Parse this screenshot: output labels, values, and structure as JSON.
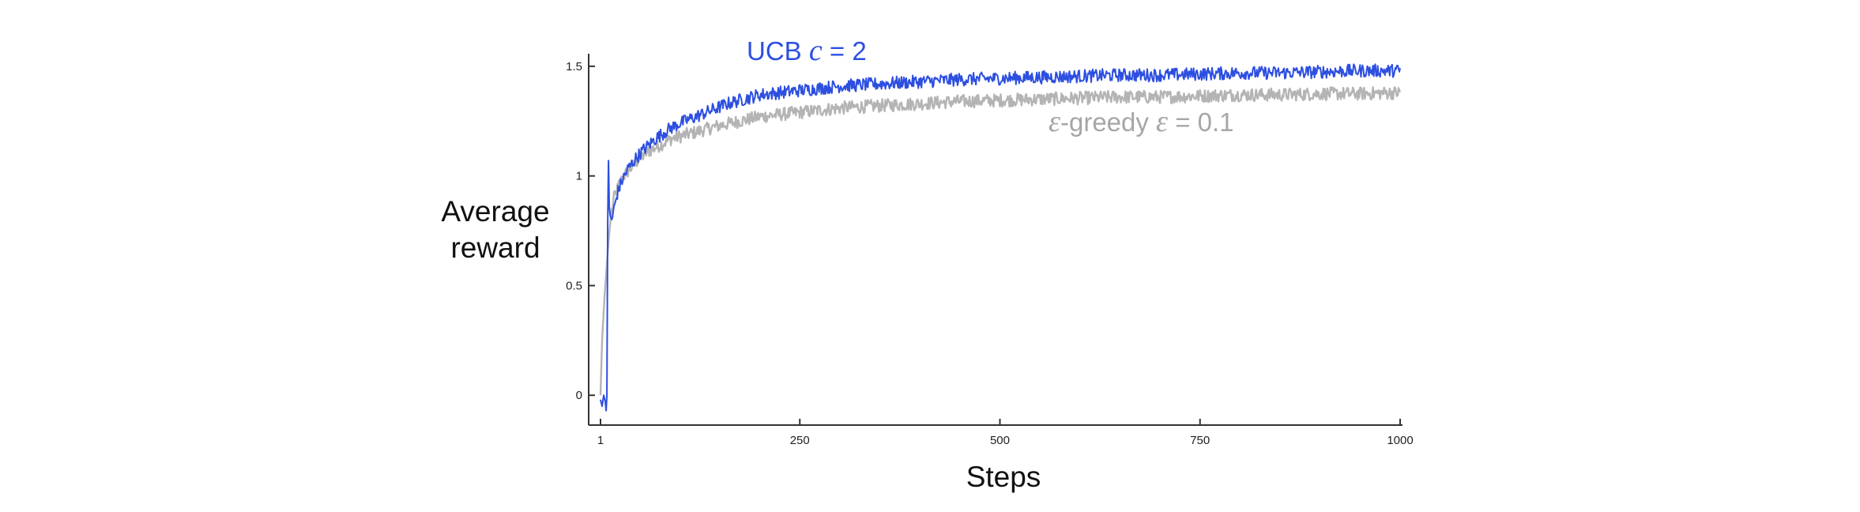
{
  "chart_data": {
    "type": "line",
    "title": "",
    "xlabel": "Steps",
    "ylabel_lines": [
      "Average",
      "reward"
    ],
    "xlim": [
      1,
      1000
    ],
    "ylim": [
      -0.1,
      1.55
    ],
    "xticks": [
      1,
      250,
      500,
      750,
      1000
    ],
    "xtick_labels": [
      "1",
      "250",
      "500",
      "750",
      "1000"
    ],
    "yticks": [
      0,
      0.5,
      1,
      1.5
    ],
    "ytick_labels": [
      "0",
      "0.5",
      "1",
      "1.5"
    ],
    "grid": false,
    "legend": "inline annotations",
    "series": [
      {
        "name_parts": [
          "",
          "-greedy  ",
          "",
          " = 0.1"
        ],
        "name_symbols": [
          "ε",
          "ε"
        ],
        "color": "#b4b4b4",
        "x": [
          1,
          3,
          6,
          8,
          10,
          12,
          14,
          18,
          24,
          30,
          40,
          50,
          60,
          75,
          90,
          110,
          130,
          150,
          175,
          200,
          225,
          250,
          275,
          300,
          350,
          400,
          450,
          500,
          550,
          600,
          650,
          700,
          750,
          800,
          850,
          900,
          950,
          1000
        ],
        "values": [
          0.0,
          0.25,
          0.45,
          0.55,
          0.65,
          0.74,
          0.82,
          0.9,
          0.96,
          1.0,
          1.04,
          1.08,
          1.11,
          1.14,
          1.17,
          1.19,
          1.21,
          1.23,
          1.25,
          1.27,
          1.28,
          1.29,
          1.3,
          1.31,
          1.32,
          1.33,
          1.34,
          1.345,
          1.35,
          1.355,
          1.36,
          1.36,
          1.365,
          1.37,
          1.37,
          1.375,
          1.375,
          1.38
        ],
        "noise": 0.03
      },
      {
        "name_parts": [
          "UCB  ",
          "",
          " = 2"
        ],
        "name_symbols": [
          "c"
        ],
        "color": "#2d4fe0",
        "x": [
          1,
          3,
          5,
          7,
          8,
          9,
          10,
          11,
          12,
          13,
          15,
          18,
          22,
          28,
          35,
          45,
          55,
          70,
          85,
          100,
          120,
          140,
          160,
          180,
          200,
          225,
          250,
          300,
          350,
          400,
          450,
          500,
          550,
          600,
          650,
          700,
          750,
          800,
          850,
          900,
          950,
          1000
        ],
        "values": [
          -0.02,
          -0.05,
          0.0,
          -0.03,
          -0.07,
          0.0,
          0.78,
          1.07,
          0.86,
          0.82,
          0.8,
          0.85,
          0.92,
          0.98,
          1.03,
          1.08,
          1.12,
          1.17,
          1.21,
          1.24,
          1.27,
          1.3,
          1.33,
          1.35,
          1.37,
          1.38,
          1.39,
          1.41,
          1.42,
          1.43,
          1.44,
          1.445,
          1.45,
          1.455,
          1.46,
          1.46,
          1.465,
          1.47,
          1.47,
          1.475,
          1.48,
          1.48
        ],
        "noise": 0.03
      }
    ]
  }
}
